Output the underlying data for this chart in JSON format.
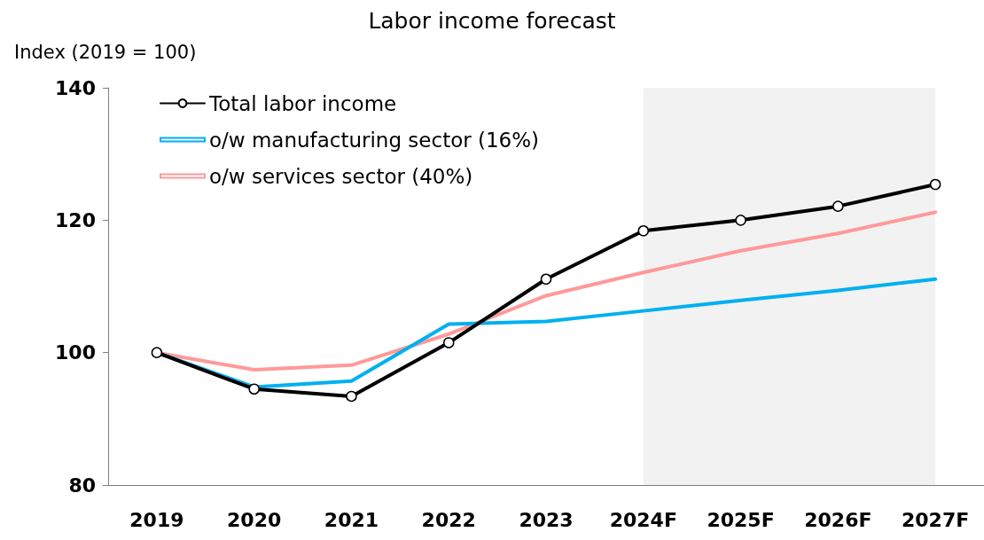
{
  "chart_data": {
    "type": "line",
    "title": "Labor income forecast",
    "ylabel": "Index (2019 = 100)",
    "categories": [
      "2019",
      "2020",
      "2021",
      "2022",
      "2023",
      "2024F",
      "2025F",
      "2026F",
      "2027F"
    ],
    "series": [
      {
        "name": "Total labor income",
        "color": "#000000",
        "marker": "circle",
        "values": [
          100,
          94.5,
          93.4,
          101.5,
          111.1,
          118.4,
          120.0,
          122.1,
          125.4
        ]
      },
      {
        "name": "o/w manufacturing sector (16%)",
        "color": "#00b0f0",
        "marker": "none",
        "values": [
          100,
          94.8,
          95.7,
          104.3,
          104.7,
          106.3,
          107.9,
          109.4,
          111.1
        ]
      },
      {
        "name": "o/w services sector (40%)",
        "color": "#ff9999",
        "marker": "none",
        "values": [
          100,
          97.4,
          98.1,
          102.8,
          108.6,
          112.1,
          115.4,
          118.0,
          121.2
        ]
      }
    ],
    "ylim": [
      80,
      140
    ],
    "yticks": [
      80,
      100,
      120,
      140
    ],
    "grid": false,
    "legend": "top left",
    "bands": [
      {
        "axis": "x",
        "from": "2024F",
        "to": "2027F",
        "color": "#f2f2f2"
      }
    ]
  }
}
